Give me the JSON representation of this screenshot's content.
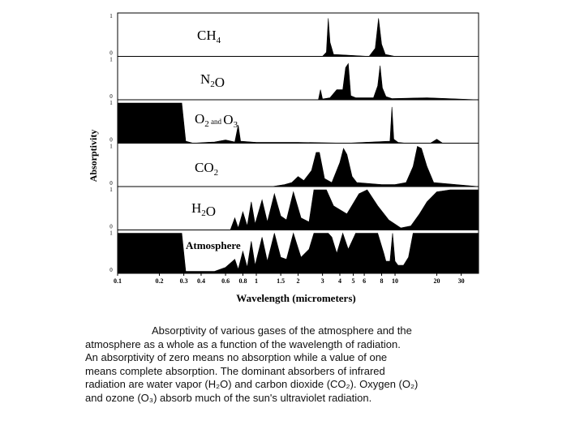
{
  "chart_data": {
    "type": "area",
    "xlabel": "Wavelength (micrometers)",
    "ylabel": "Absorptivity",
    "x_scale": "log",
    "xlim": [
      0.1,
      40
    ],
    "ylim": [
      0,
      1
    ],
    "x_ticks": [
      {
        "v": 0.1,
        "label": "0.1"
      },
      {
        "v": 0.2,
        "label": "0.2"
      },
      {
        "v": 0.3,
        "label": "0.3"
      },
      {
        "v": 0.4,
        "label": "0.4"
      },
      {
        "v": 0.6,
        "label": "0.6"
      },
      {
        "v": 0.8,
        "label": "0.8"
      },
      {
        "v": 1,
        "label": "1"
      },
      {
        "v": 1.5,
        "label": "1.5"
      },
      {
        "v": 2,
        "label": "2"
      },
      {
        "v": 3,
        "label": "3"
      },
      {
        "v": 4,
        "label": "4"
      },
      {
        "v": 5,
        "label": "5"
      },
      {
        "v": 6,
        "label": "6"
      },
      {
        "v": 8,
        "label": "8"
      },
      {
        "v": 10,
        "label": "10"
      },
      {
        "v": 20,
        "label": "20"
      },
      {
        "v": 30,
        "label": "30"
      }
    ],
    "y_ticks": [
      "0",
      "1"
    ],
    "series": [
      {
        "label_parts": [
          {
            "t": "CH"
          },
          {
            "t": "4",
            "sub": true
          }
        ],
        "points": [
          [
            0.1,
            0
          ],
          [
            3.0,
            0
          ],
          [
            3.2,
            0.1
          ],
          [
            3.3,
            0.95
          ],
          [
            3.4,
            0.35
          ],
          [
            3.6,
            0.05
          ],
          [
            6.5,
            0
          ],
          [
            7.2,
            0.2
          ],
          [
            7.6,
            0.95
          ],
          [
            8.0,
            0.3
          ],
          [
            8.5,
            0.05
          ],
          [
            10,
            0
          ],
          [
            40,
            0
          ]
        ]
      },
      {
        "label_parts": [
          {
            "t": "N"
          },
          {
            "t": "2",
            "sub": true
          },
          {
            "t": "O"
          }
        ],
        "points": [
          [
            0.1,
            0
          ],
          [
            2.8,
            0
          ],
          [
            2.9,
            0.25
          ],
          [
            3.0,
            0.02
          ],
          [
            3.4,
            0.05
          ],
          [
            3.8,
            0.25
          ],
          [
            4.2,
            0.25
          ],
          [
            4.4,
            0.8
          ],
          [
            4.6,
            0.9
          ],
          [
            4.8,
            0.1
          ],
          [
            5.2,
            0.05
          ],
          [
            7.0,
            0.05
          ],
          [
            7.5,
            0.35
          ],
          [
            7.8,
            0.85
          ],
          [
            8.1,
            0.3
          ],
          [
            8.6,
            0.08
          ],
          [
            9.5,
            0.03
          ],
          [
            17,
            0.05
          ],
          [
            40,
            0
          ]
        ]
      },
      {
        "label_parts": [
          {
            "t": "O"
          },
          {
            "t": "2",
            "sub": true
          },
          {
            "t": " and ",
            "small": true
          },
          {
            "t": "O"
          },
          {
            "t": "3",
            "sub": true
          }
        ],
        "points": [
          [
            0.1,
            1
          ],
          [
            0.29,
            1
          ],
          [
            0.31,
            0.05
          ],
          [
            0.35,
            0
          ],
          [
            0.5,
            0.03
          ],
          [
            0.6,
            0.08
          ],
          [
            0.7,
            0.03
          ],
          [
            0.74,
            0.45
          ],
          [
            0.77,
            0.05
          ],
          [
            1.0,
            0.02
          ],
          [
            2.0,
            0.02
          ],
          [
            4.5,
            0
          ],
          [
            9.2,
            0.05
          ],
          [
            9.5,
            0.9
          ],
          [
            9.8,
            0.1
          ],
          [
            10.5,
            0.02
          ],
          [
            12,
            0
          ],
          [
            18,
            0
          ],
          [
            20,
            0.1
          ],
          [
            22,
            0
          ],
          [
            40,
            0
          ]
        ]
      },
      {
        "label_parts": [
          {
            "t": "CO"
          },
          {
            "t": "2",
            "sub": true
          }
        ],
        "points": [
          [
            0.1,
            0
          ],
          [
            1.3,
            0
          ],
          [
            1.6,
            0.05
          ],
          [
            1.8,
            0.1
          ],
          [
            2.0,
            0.25
          ],
          [
            2.2,
            0.15
          ],
          [
            2.5,
            0.4
          ],
          [
            2.7,
            0.85
          ],
          [
            2.85,
            0.85
          ],
          [
            3.1,
            0.2
          ],
          [
            3.5,
            0.1
          ],
          [
            4.0,
            0.6
          ],
          [
            4.25,
            0.95
          ],
          [
            4.5,
            0.8
          ],
          [
            4.9,
            0.25
          ],
          [
            5.3,
            0.1
          ],
          [
            8,
            0.05
          ],
          [
            10,
            0.05
          ],
          [
            12,
            0.1
          ],
          [
            13.5,
            0.5
          ],
          [
            14.5,
            1.0
          ],
          [
            15.5,
            0.95
          ],
          [
            17,
            0.5
          ],
          [
            19,
            0.1
          ],
          [
            40,
            0
          ]
        ]
      },
      {
        "label_parts": [
          {
            "t": "H"
          },
          {
            "t": "2",
            "sub": true
          },
          {
            "t": "O"
          }
        ],
        "points": [
          [
            0.1,
            0
          ],
          [
            0.65,
            0
          ],
          [
            0.7,
            0.3
          ],
          [
            0.74,
            0.05
          ],
          [
            0.8,
            0.45
          ],
          [
            0.86,
            0.1
          ],
          [
            0.92,
            0.7
          ],
          [
            0.98,
            0.15
          ],
          [
            1.1,
            0.75
          ],
          [
            1.2,
            0.2
          ],
          [
            1.35,
            0.9
          ],
          [
            1.5,
            0.35
          ],
          [
            1.65,
            0.25
          ],
          [
            1.85,
            0.95
          ],
          [
            2.1,
            0.3
          ],
          [
            2.4,
            0.2
          ],
          [
            2.6,
            1.0
          ],
          [
            3.2,
            1.0
          ],
          [
            3.6,
            0.6
          ],
          [
            4.5,
            0.4
          ],
          [
            5.5,
            0.9
          ],
          [
            6.3,
            1.0
          ],
          [
            7.5,
            0.6
          ],
          [
            9,
            0.25
          ],
          [
            11,
            0.05
          ],
          [
            13,
            0.1
          ],
          [
            15,
            0.4
          ],
          [
            17,
            0.7
          ],
          [
            20,
            0.95
          ],
          [
            25,
            1.0
          ],
          [
            40,
            1.0
          ]
        ]
      },
      {
        "label_parts": [
          {
            "t": "Atmosphere"
          }
        ],
        "points": [
          [
            0.1,
            1
          ],
          [
            0.29,
            1
          ],
          [
            0.31,
            0.05
          ],
          [
            0.4,
            0.05
          ],
          [
            0.5,
            0.05
          ],
          [
            0.6,
            0.15
          ],
          [
            0.7,
            0.35
          ],
          [
            0.74,
            0.1
          ],
          [
            0.8,
            0.55
          ],
          [
            0.86,
            0.15
          ],
          [
            0.92,
            0.8
          ],
          [
            0.98,
            0.2
          ],
          [
            1.1,
            0.9
          ],
          [
            1.2,
            0.3
          ],
          [
            1.35,
            1.0
          ],
          [
            1.5,
            0.4
          ],
          [
            1.65,
            0.35
          ],
          [
            1.85,
            1.0
          ],
          [
            2.1,
            0.4
          ],
          [
            2.4,
            0.6
          ],
          [
            2.6,
            1.0
          ],
          [
            3.3,
            1.0
          ],
          [
            3.5,
            0.9
          ],
          [
            3.8,
            0.5
          ],
          [
            4.2,
            1.0
          ],
          [
            4.6,
            0.6
          ],
          [
            5.2,
            1.0
          ],
          [
            7.5,
            1.0
          ],
          [
            8.3,
            0.5
          ],
          [
            8.6,
            0.3
          ],
          [
            9.2,
            0.3
          ],
          [
            9.6,
            1.0
          ],
          [
            10.0,
            0.3
          ],
          [
            10.5,
            0.2
          ],
          [
            11.5,
            0.2
          ],
          [
            12.5,
            0.4
          ],
          [
            13.5,
            1.0
          ],
          [
            40,
            1.0
          ]
        ]
      }
    ]
  },
  "caption_lines": [
    "Absorptivity of various gases of the atmosphere and the",
    "atmosphere as a whole as a function of the wavelength of radiation.",
    "An absorptivity of zero means no absorption while a value of one",
    "means complete absorption. The dominant absorbers of infrared",
    "radiation are water vapor (H₂O) and carbon dioxide (CO₂). Oxygen (O₂)",
    "and ozone (O₃) absorb much of the sun's ultraviolet radiation."
  ]
}
